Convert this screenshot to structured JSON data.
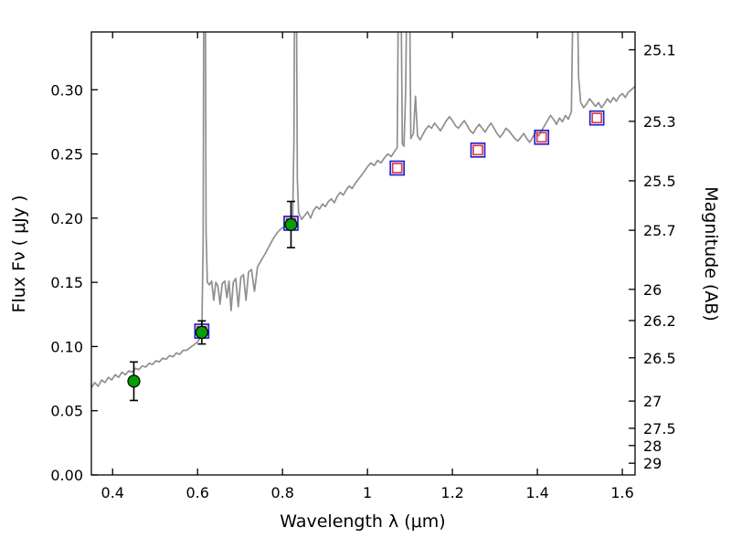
{
  "figure": {
    "kind": "sed-spectrum-with-photometry",
    "background": "#ffffff"
  },
  "colors": {
    "spectrum": "#8f8f8f",
    "observed_fill": "#00a000",
    "observed_edge": "#000000",
    "errorbar": "#000000",
    "model_outer": "#2222cc",
    "model_inner": "#dd3344",
    "axis": "#000000"
  },
  "chart_data": {
    "type": "line",
    "title": "",
    "xlabel": "Wavelength  λ  (μm)",
    "ylabel": "Flux  Fν  ( μJy )",
    "xlim": [
      0.35,
      1.63
    ],
    "ylim": [
      0.0,
      0.345
    ],
    "x_ticks": [
      0.4,
      0.6,
      0.8,
      1.0,
      1.2,
      1.4,
      1.6
    ],
    "x_tick_labels": [
      "0.4",
      "0.6",
      "0.8",
      "1",
      "1.2",
      "1.4",
      "1.6"
    ],
    "y_ticks": [
      0.0,
      0.05,
      0.1,
      0.15,
      0.2,
      0.25,
      0.3
    ],
    "y_tick_labels": [
      "0.00",
      "0.05",
      "0.10",
      "0.15",
      "0.20",
      "0.25",
      "0.30"
    ],
    "grid": false,
    "legend": "none",
    "right_axis": {
      "label": "Magnitude (AB)",
      "tick_values": [
        25.1,
        25.3,
        25.5,
        25.7,
        26,
        26.2,
        26.5,
        27,
        27.5,
        28,
        29
      ],
      "tick_labels": [
        "25.1",
        "25.3",
        "25.5",
        "25.7",
        "26",
        "26.2",
        "26.5",
        "27",
        "27.5",
        "28",
        "29"
      ],
      "mag_zeropoint_ujy": 23.9
    },
    "series": [
      {
        "name": "model-spectrum",
        "type": "line",
        "color": "#8f8f8f",
        "points": [
          [
            0.35,
            0.068
          ],
          [
            0.358,
            0.072
          ],
          [
            0.366,
            0.069
          ],
          [
            0.374,
            0.074
          ],
          [
            0.382,
            0.072
          ],
          [
            0.39,
            0.076
          ],
          [
            0.398,
            0.074
          ],
          [
            0.406,
            0.078
          ],
          [
            0.414,
            0.076
          ],
          [
            0.422,
            0.08
          ],
          [
            0.43,
            0.078
          ],
          [
            0.438,
            0.081
          ],
          [
            0.446,
            0.08
          ],
          [
            0.454,
            0.083
          ],
          [
            0.462,
            0.082
          ],
          [
            0.47,
            0.085
          ],
          [
            0.478,
            0.084
          ],
          [
            0.486,
            0.087
          ],
          [
            0.494,
            0.086
          ],
          [
            0.502,
            0.089
          ],
          [
            0.51,
            0.088
          ],
          [
            0.518,
            0.091
          ],
          [
            0.526,
            0.09
          ],
          [
            0.534,
            0.093
          ],
          [
            0.542,
            0.092
          ],
          [
            0.55,
            0.095
          ],
          [
            0.558,
            0.094
          ],
          [
            0.566,
            0.097
          ],
          [
            0.574,
            0.097
          ],
          [
            0.582,
            0.099
          ],
          [
            0.59,
            0.101
          ],
          [
            0.598,
            0.103
          ],
          [
            0.605,
            0.106
          ],
          [
            0.61,
            0.112
          ],
          [
            0.613,
            0.18
          ],
          [
            0.615,
            0.42
          ],
          [
            0.618,
            0.42
          ],
          [
            0.62,
            0.19
          ],
          [
            0.623,
            0.15
          ],
          [
            0.628,
            0.148
          ],
          [
            0.633,
            0.151
          ],
          [
            0.638,
            0.136
          ],
          [
            0.643,
            0.15
          ],
          [
            0.648,
            0.147
          ],
          [
            0.653,
            0.133
          ],
          [
            0.658,
            0.149
          ],
          [
            0.664,
            0.151
          ],
          [
            0.669,
            0.138
          ],
          [
            0.674,
            0.151
          ],
          [
            0.679,
            0.128
          ],
          [
            0.684,
            0.15
          ],
          [
            0.69,
            0.153
          ],
          [
            0.696,
            0.131
          ],
          [
            0.702,
            0.154
          ],
          [
            0.708,
            0.156
          ],
          [
            0.714,
            0.136
          ],
          [
            0.72,
            0.158
          ],
          [
            0.727,
            0.16
          ],
          [
            0.734,
            0.143
          ],
          [
            0.741,
            0.162
          ],
          [
            0.748,
            0.166
          ],
          [
            0.755,
            0.17
          ],
          [
            0.762,
            0.174
          ],
          [
            0.77,
            0.179
          ],
          [
            0.778,
            0.184
          ],
          [
            0.786,
            0.188
          ],
          [
            0.794,
            0.191
          ],
          [
            0.802,
            0.193
          ],
          [
            0.81,
            0.195
          ],
          [
            0.818,
            0.197
          ],
          [
            0.824,
            0.2
          ],
          [
            0.827,
            0.26
          ],
          [
            0.829,
            0.42
          ],
          [
            0.832,
            0.42
          ],
          [
            0.835,
            0.23
          ],
          [
            0.838,
            0.204
          ],
          [
            0.845,
            0.199
          ],
          [
            0.852,
            0.202
          ],
          [
            0.859,
            0.205
          ],
          [
            0.866,
            0.2
          ],
          [
            0.873,
            0.206
          ],
          [
            0.88,
            0.209
          ],
          [
            0.887,
            0.207
          ],
          [
            0.894,
            0.211
          ],
          [
            0.901,
            0.209
          ],
          [
            0.908,
            0.213
          ],
          [
            0.915,
            0.215
          ],
          [
            0.922,
            0.212
          ],
          [
            0.929,
            0.217
          ],
          [
            0.936,
            0.22
          ],
          [
            0.943,
            0.218
          ],
          [
            0.95,
            0.222
          ],
          [
            0.957,
            0.225
          ],
          [
            0.964,
            0.223
          ],
          [
            0.971,
            0.227
          ],
          [
            0.978,
            0.23
          ],
          [
            0.985,
            0.233
          ],
          [
            0.992,
            0.236
          ],
          [
            1.0,
            0.24
          ],
          [
            1.008,
            0.243
          ],
          [
            1.016,
            0.241
          ],
          [
            1.024,
            0.245
          ],
          [
            1.032,
            0.243
          ],
          [
            1.04,
            0.247
          ],
          [
            1.048,
            0.25
          ],
          [
            1.056,
            0.248
          ],
          [
            1.064,
            0.252
          ],
          [
            1.07,
            0.255
          ],
          [
            1.074,
            0.42
          ],
          [
            1.078,
            0.42
          ],
          [
            1.082,
            0.258
          ],
          [
            1.086,
            0.256
          ],
          [
            1.09,
            0.3
          ],
          [
            1.094,
            0.42
          ],
          [
            1.098,
            0.42
          ],
          [
            1.102,
            0.262
          ],
          [
            1.108,
            0.266
          ],
          [
            1.113,
            0.295
          ],
          [
            1.118,
            0.264
          ],
          [
            1.124,
            0.261
          ],
          [
            1.13,
            0.265
          ],
          [
            1.137,
            0.269
          ],
          [
            1.144,
            0.272
          ],
          [
            1.151,
            0.27
          ],
          [
            1.158,
            0.274
          ],
          [
            1.165,
            0.271
          ],
          [
            1.172,
            0.268
          ],
          [
            1.179,
            0.272
          ],
          [
            1.186,
            0.276
          ],
          [
            1.193,
            0.279
          ],
          [
            1.2,
            0.276
          ],
          [
            1.207,
            0.272
          ],
          [
            1.214,
            0.27
          ],
          [
            1.221,
            0.273
          ],
          [
            1.228,
            0.276
          ],
          [
            1.235,
            0.272
          ],
          [
            1.242,
            0.268
          ],
          [
            1.249,
            0.266
          ],
          [
            1.256,
            0.27
          ],
          [
            1.263,
            0.273
          ],
          [
            1.27,
            0.27
          ],
          [
            1.277,
            0.267
          ],
          [
            1.284,
            0.271
          ],
          [
            1.291,
            0.274
          ],
          [
            1.298,
            0.27
          ],
          [
            1.305,
            0.266
          ],
          [
            1.312,
            0.263
          ],
          [
            1.319,
            0.266
          ],
          [
            1.326,
            0.27
          ],
          [
            1.333,
            0.268
          ],
          [
            1.34,
            0.265
          ],
          [
            1.347,
            0.262
          ],
          [
            1.354,
            0.26
          ],
          [
            1.361,
            0.263
          ],
          [
            1.368,
            0.266
          ],
          [
            1.375,
            0.262
          ],
          [
            1.382,
            0.259
          ],
          [
            1.389,
            0.263
          ],
          [
            1.396,
            0.267
          ],
          [
            1.403,
            0.264
          ],
          [
            1.41,
            0.268
          ],
          [
            1.417,
            0.272
          ],
          [
            1.424,
            0.276
          ],
          [
            1.431,
            0.28
          ],
          [
            1.438,
            0.277
          ],
          [
            1.445,
            0.273
          ],
          [
            1.452,
            0.278
          ],
          [
            1.459,
            0.275
          ],
          [
            1.466,
            0.28
          ],
          [
            1.473,
            0.277
          ],
          [
            1.48,
            0.283
          ],
          [
            1.486,
            0.42
          ],
          [
            1.492,
            0.42
          ],
          [
            1.497,
            0.31
          ],
          [
            1.502,
            0.29
          ],
          [
            1.509,
            0.286
          ],
          [
            1.516,
            0.289
          ],
          [
            1.523,
            0.293
          ],
          [
            1.53,
            0.29
          ],
          [
            1.537,
            0.287
          ],
          [
            1.544,
            0.29
          ],
          [
            1.551,
            0.286
          ],
          [
            1.558,
            0.289
          ],
          [
            1.565,
            0.293
          ],
          [
            1.572,
            0.29
          ],
          [
            1.579,
            0.294
          ],
          [
            1.586,
            0.291
          ],
          [
            1.593,
            0.295
          ],
          [
            1.6,
            0.297
          ],
          [
            1.607,
            0.294
          ],
          [
            1.614,
            0.298
          ],
          [
            1.621,
            0.3
          ],
          [
            1.628,
            0.302
          ]
        ]
      },
      {
        "name": "model-photometry",
        "type": "scatter",
        "marker": "open-square",
        "outer_color": "#2222cc",
        "inner_color": "#dd3344",
        "points": [
          [
            0.61,
            0.112
          ],
          [
            0.82,
            0.196
          ],
          [
            1.07,
            0.239
          ],
          [
            1.26,
            0.253
          ],
          [
            1.41,
            0.263
          ],
          [
            1.54,
            0.278
          ]
        ]
      },
      {
        "name": "observed-photometry",
        "type": "scatter",
        "marker": "filled-circle",
        "fill": "#00a000",
        "edge": "#000000",
        "points": [
          {
            "x": 0.45,
            "y": 0.073,
            "yerr": 0.015
          },
          {
            "x": 0.61,
            "y": 0.111,
            "yerr": 0.009
          },
          {
            "x": 0.82,
            "y": 0.195,
            "yerr": 0.018
          }
        ]
      }
    ]
  }
}
